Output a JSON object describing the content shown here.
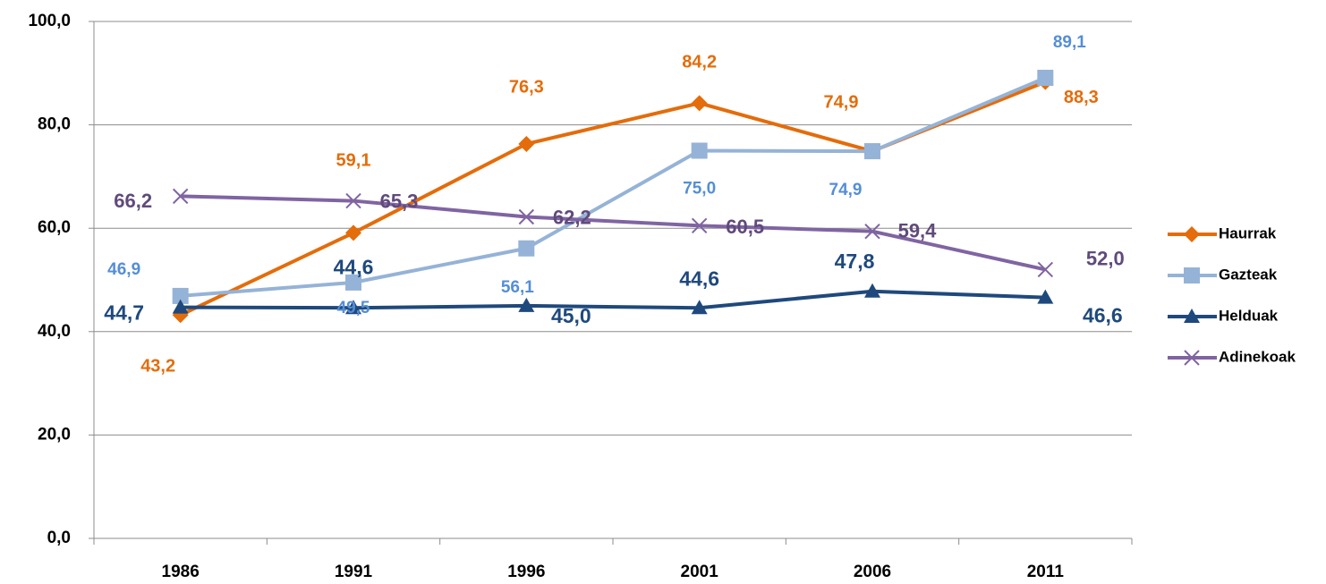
{
  "chart_data": {
    "type": "line",
    "categories": [
      "1986",
      "1991",
      "1996",
      "2001",
      "2006",
      "2011"
    ],
    "series": [
      {
        "name": "Haurrak",
        "color": "#e46c0a",
        "values": [
          43.2,
          59.1,
          76.3,
          84.2,
          74.9,
          88.3
        ],
        "value_labels": [
          "43,2",
          "59,1",
          "76,3",
          "84,2",
          "74,9",
          "88,3"
        ]
      },
      {
        "name": "Gazteak",
        "color": "#95b3d7",
        "values": [
          46.9,
          49.5,
          56.1,
          75.0,
          74.9,
          89.1
        ],
        "value_labels": [
          "46,9",
          "49,5",
          "56,1",
          "75,0",
          "74,9",
          "89,1"
        ]
      },
      {
        "name": "Helduak",
        "color": "#1f497d",
        "values": [
          44.7,
          44.6,
          45.0,
          44.6,
          47.8,
          46.6
        ],
        "value_labels": [
          "44,7",
          "44,6",
          "45,0",
          "44,6",
          "47,8",
          "46,6"
        ]
      },
      {
        "name": "Adinekoak",
        "color": "#8064a2",
        "values": [
          66.2,
          65.3,
          62.2,
          60.5,
          59.4,
          52.0
        ],
        "value_labels": [
          "66,2",
          "65,3",
          "62,2",
          "60,5",
          "59,4",
          "52,0"
        ]
      }
    ],
    "ylim": [
      0,
      100
    ],
    "yticks": [
      {
        "value": 0,
        "label": "0,0"
      },
      {
        "value": 20,
        "label": "20,0"
      },
      {
        "value": 40,
        "label": "40,0"
      },
      {
        "value": 60,
        "label": "60,0"
      },
      {
        "value": 80,
        "label": "80,0"
      },
      {
        "value": 100,
        "label": "100,0"
      }
    ],
    "grid": true,
    "legend": "right"
  }
}
